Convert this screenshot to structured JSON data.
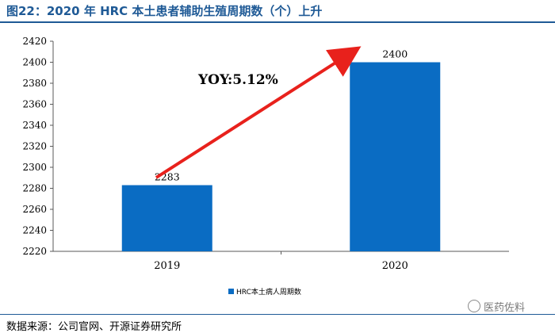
{
  "chart_data": {
    "type": "bar",
    "title": "图22：2020 年 HRC 本土患者辅助生殖周期数（个）上升",
    "categories": [
      "2019",
      "2020"
    ],
    "series": [
      {
        "name": "HRC本土病人周期数",
        "values": [
          2283,
          2400
        ],
        "color": "#0a6cc3"
      }
    ],
    "ylim": [
      2220,
      2420
    ],
    "yticks": [
      2220,
      2240,
      2260,
      2280,
      2300,
      2320,
      2340,
      2360,
      2380,
      2400,
      2420
    ],
    "data_labels": [
      "2283",
      "2400"
    ],
    "annotation": "YOY:5.12%",
    "legend": "bottom-center",
    "xlabel": "",
    "ylabel": ""
  },
  "source": "数据来源：公司官网、开源证券研究所",
  "watermark": "医药佐料",
  "colors": {
    "title": "#1f5a96",
    "bar": "#0a6cc3",
    "arrow": "#e8211c"
  }
}
